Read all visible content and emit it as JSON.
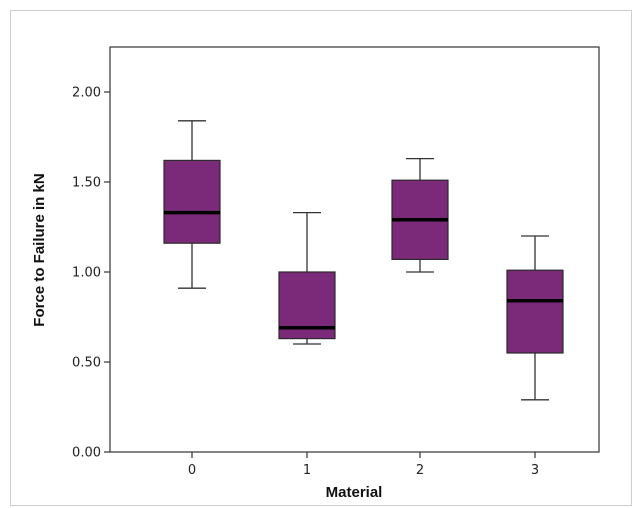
{
  "chart_data": {
    "type": "boxplot",
    "title": "",
    "xlabel": "Material",
    "ylabel": "Force to Failure in kN",
    "ylim": [
      0,
      2.2
    ],
    "yticks": [
      0,
      0.5,
      1.0,
      1.5,
      2.0
    ],
    "ytick_labels": [
      "0.00",
      "0.50",
      "1.00",
      "1.50",
      "2.00"
    ],
    "categories": [
      "0",
      "1",
      "2",
      "3"
    ],
    "boxes": [
      {
        "category": "0",
        "min": 0.91,
        "q1": 1.16,
        "median": 1.33,
        "q3": 1.62,
        "max": 1.84
      },
      {
        "category": "1",
        "min": 0.6,
        "q1": 0.63,
        "median": 0.69,
        "q3": 1.0,
        "max": 1.33
      },
      {
        "category": "2",
        "min": 1.0,
        "q1": 1.07,
        "median": 1.29,
        "q3": 1.51,
        "max": 1.63
      },
      {
        "category": "3",
        "min": 0.29,
        "q1": 0.55,
        "median": 0.84,
        "q3": 1.01,
        "max": 1.2
      }
    ],
    "box_color": "#7a2a78",
    "median_color": "#000000",
    "grid": false,
    "legend": "none"
  }
}
